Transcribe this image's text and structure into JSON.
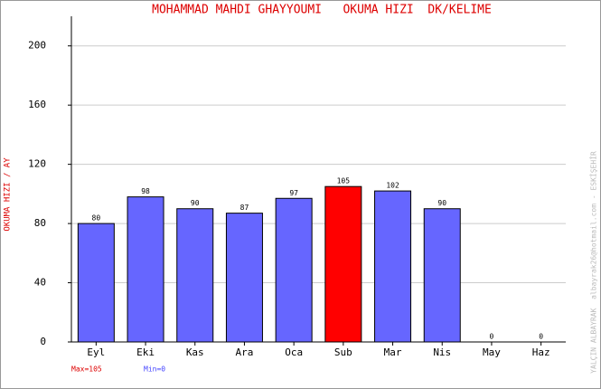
{
  "chart_data": {
    "type": "bar",
    "title": "MOHAMMAD MAHDI GHAYYOUMI   OKUMA HIZI  DK/KELIME",
    "y_label": "OKUMA HIZI / AY",
    "side_note": "YALÇIN ALBAYRAK  albayrak26@hotmail.com - ESKİŞEHİR",
    "max_label": "Max=105",
    "min_label": "Min=0",
    "categories": [
      "Eyl",
      "Eki",
      "Kas",
      "Ara",
      "Oca",
      "Sub",
      "Mar",
      "Nis",
      "May",
      "Haz"
    ],
    "values": [
      80,
      98,
      90,
      87,
      97,
      105,
      102,
      90,
      0,
      0
    ],
    "colors": [
      "#6666ff",
      "#6666ff",
      "#6666ff",
      "#6666ff",
      "#6666ff",
      "#ff0000",
      "#6666ff",
      "#6666ff",
      "#6666ff",
      "#6666ff"
    ],
    "ylim": [
      0,
      220
    ],
    "yticks": [
      0,
      40,
      80,
      120,
      160,
      200
    ],
    "grid": true
  }
}
